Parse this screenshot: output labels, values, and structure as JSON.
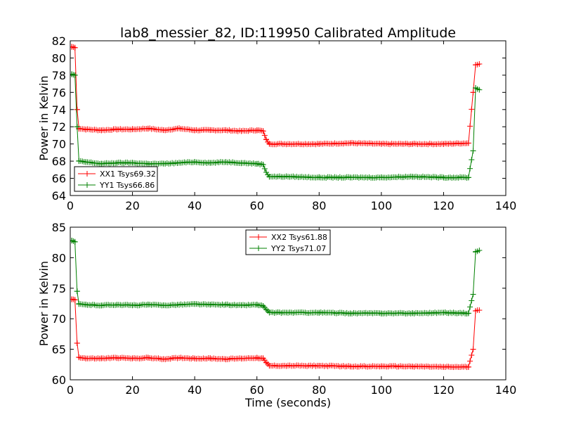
{
  "title": "lab8_messier_82, ID:119950 Calibrated Amplitude",
  "chart_data": [
    {
      "type": "line",
      "title": "lab8_messier_82, ID:119950 Calibrated Amplitude",
      "xlabel": "",
      "ylabel": "Power in Kelvin",
      "xlim": [
        0,
        140
      ],
      "ylim": [
        64,
        82
      ],
      "xticks": [
        "0",
        "20",
        "40",
        "60",
        "80",
        "100",
        "120",
        "140"
      ],
      "yticks": [
        "64",
        "66",
        "68",
        "70",
        "72",
        "74",
        "76",
        "78",
        "80",
        "82"
      ],
      "grid": false,
      "legend_position": "lower-left",
      "marker": "+",
      "series": [
        {
          "name": "XX1 Tsys69.32",
          "color": "#ff0000",
          "x": [
            0.5,
            1.5,
            2.2,
            2.8,
            5,
            10,
            15,
            20,
            25,
            30,
            35,
            40,
            45,
            50,
            55,
            60,
            62,
            63,
            64,
            70,
            80,
            90,
            100,
            110,
            120,
            128,
            129.5,
            130.3,
            131.5
          ],
          "y": [
            81.3,
            81.2,
            74.0,
            71.8,
            71.7,
            71.6,
            71.7,
            71.7,
            71.8,
            71.6,
            71.8,
            71.6,
            71.6,
            71.6,
            71.5,
            71.6,
            71.5,
            70.5,
            70.0,
            70.0,
            70.0,
            70.1,
            70.0,
            70.0,
            70.0,
            70.1,
            76.0,
            79.2,
            79.3
          ]
        },
        {
          "name": "YY1 Tsys66.86",
          "color": "#008000",
          "x": [
            0.5,
            1.5,
            2.2,
            2.8,
            5,
            10,
            15,
            20,
            25,
            30,
            35,
            40,
            45,
            50,
            55,
            60,
            62,
            63,
            64,
            70,
            80,
            90,
            100,
            110,
            120,
            128,
            129.5,
            130.3,
            131.5
          ],
          "y": [
            78.1,
            78.0,
            72.0,
            68.0,
            67.9,
            67.7,
            67.8,
            67.8,
            67.7,
            67.7,
            67.8,
            67.9,
            67.8,
            67.9,
            67.8,
            67.7,
            67.6,
            66.7,
            66.2,
            66.2,
            66.1,
            66.1,
            66.1,
            66.2,
            66.1,
            66.1,
            69.2,
            76.5,
            76.3
          ]
        }
      ]
    },
    {
      "type": "line",
      "title": "",
      "xlabel": "Time (seconds)",
      "ylabel": "Power in Kelvin",
      "xlim": [
        0,
        140
      ],
      "ylim": [
        60,
        85
      ],
      "xticks": [
        "0",
        "20",
        "40",
        "60",
        "80",
        "100",
        "120",
        "140"
      ],
      "yticks": [
        "60",
        "65",
        "70",
        "75",
        "80",
        "85"
      ],
      "grid": false,
      "legend_position": "upper-center",
      "marker": "+",
      "series": [
        {
          "name": "XX2 Tsys61.88",
          "color": "#ff0000",
          "x": [
            0.5,
            1.5,
            2.2,
            2.8,
            5,
            10,
            15,
            20,
            25,
            30,
            35,
            40,
            45,
            50,
            55,
            60,
            62,
            63,
            64,
            70,
            80,
            90,
            100,
            110,
            120,
            128,
            129.5,
            130.3,
            131.5
          ],
          "y": [
            73.2,
            73.1,
            66.0,
            63.7,
            63.5,
            63.5,
            63.6,
            63.5,
            63.6,
            63.4,
            63.6,
            63.5,
            63.5,
            63.4,
            63.5,
            63.6,
            63.5,
            62.8,
            62.3,
            62.3,
            62.3,
            62.2,
            62.2,
            62.2,
            62.1,
            62.1,
            65.0,
            71.3,
            71.4
          ]
        },
        {
          "name": "YY2 Tsys71.07",
          "color": "#008000",
          "x": [
            0.5,
            1.5,
            2.2,
            2.8,
            5,
            10,
            15,
            20,
            25,
            30,
            35,
            40,
            45,
            50,
            55,
            60,
            62,
            63,
            64,
            70,
            80,
            90,
            100,
            110,
            120,
            128,
            129.5,
            130.3,
            131.5
          ],
          "y": [
            82.8,
            82.6,
            74.5,
            72.4,
            72.3,
            72.2,
            72.3,
            72.2,
            72.3,
            72.2,
            72.3,
            72.4,
            72.3,
            72.3,
            72.2,
            72.3,
            72.1,
            71.5,
            71.0,
            71.0,
            71.0,
            70.9,
            70.9,
            70.9,
            71.0,
            70.9,
            74.0,
            81.0,
            81.2
          ]
        }
      ]
    }
  ]
}
